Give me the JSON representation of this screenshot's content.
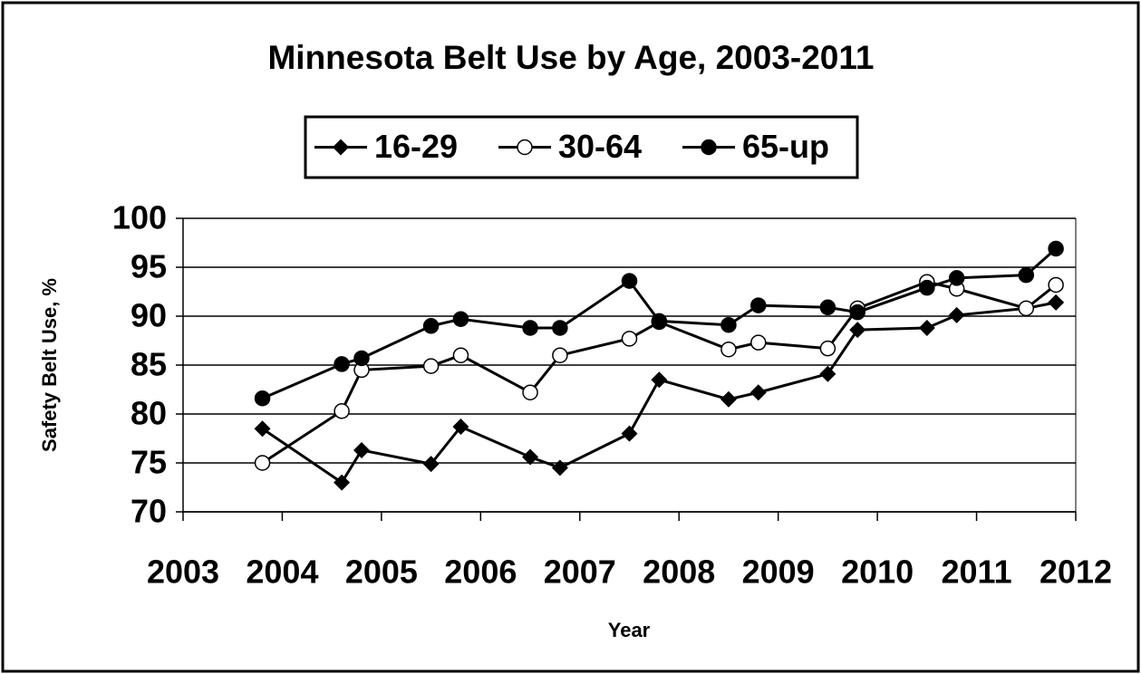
{
  "chart_data": {
    "type": "line",
    "title": "Minnesota Belt Use by Age, 2003-2011",
    "x_label": "Year",
    "y_label": "Safety Belt Use, %",
    "x": [
      2003.8,
      2004.6,
      2004.8,
      2005.5,
      2005.8,
      2006.5,
      2006.8,
      2007.5,
      2007.8,
      2008.5,
      2008.8,
      2009.5,
      2009.8,
      2010.5,
      2010.8,
      2011.5,
      2011.8
    ],
    "series": [
      {
        "name": "16-29",
        "color": "#000000",
        "marker": "diamond",
        "values": [
          78.5,
          73,
          76.3,
          74.9,
          78.7,
          75.6,
          74.5,
          78,
          83.5,
          81.5,
          82.2,
          84.1,
          88.6,
          88.8,
          90.1,
          90.8,
          91.4
        ]
      },
      {
        "name": "30-64",
        "color": "#000000",
        "marker": "open-circle",
        "values": [
          75,
          80.3,
          84.5,
          84.9,
          86,
          82.2,
          86,
          87.7,
          89.4,
          86.6,
          87.3,
          86.7,
          90.8,
          93.5,
          92.8,
          90.8,
          93.2
        ]
      },
      {
        "name": "65-up",
        "color": "#000000",
        "marker": "circle",
        "values": [
          81.6,
          85.1,
          85.7,
          89,
          89.7,
          88.8,
          88.8,
          93.6,
          89.5,
          89.1,
          91.1,
          90.9,
          90.4,
          92.9,
          93.9,
          94.2,
          96.9
        ]
      }
    ],
    "xlim": [
      2003,
      2012
    ],
    "xticks": [
      2003,
      2004,
      2005,
      2006,
      2007,
      2008,
      2009,
      2010,
      2011,
      2012
    ],
    "ylim": [
      70,
      100
    ],
    "yticks": [
      70,
      75,
      80,
      85,
      90,
      95,
      100
    ],
    "grid": true,
    "legend": "top"
  }
}
